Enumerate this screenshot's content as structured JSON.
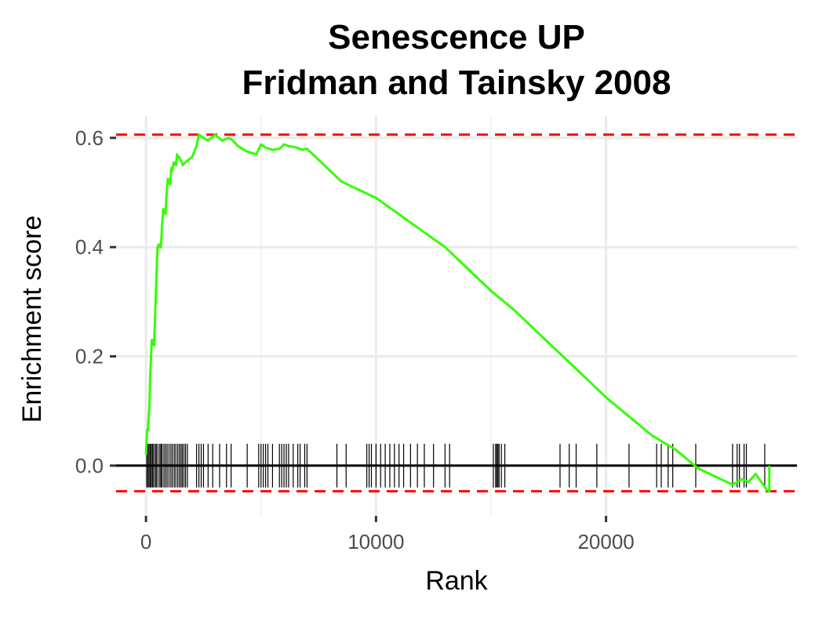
{
  "chart_data": {
    "type": "line",
    "title_line1": "Senescence UP",
    "title_line2": "Fridman and Tainsky 2008",
    "xlabel": "Rank",
    "ylabel": "Enrichment score",
    "xlim": [
      -1300,
      28300
    ],
    "ylim": [
      -0.092,
      0.64
    ],
    "xticks": [
      0,
      10000,
      20000
    ],
    "xtick_labels": [
      "0",
      "10000",
      "20000"
    ],
    "yticks": [
      0.0,
      0.2,
      0.4,
      0.6
    ],
    "ytick_labels": [
      "0.0",
      "0.2",
      "0.4",
      "0.6"
    ],
    "grid": true,
    "colors": {
      "curve": "#33ff00",
      "threshold": "#ff0000",
      "hits": "#000000",
      "zero_line": "#000000",
      "grid": "#ebebeb"
    },
    "max_es": 0.606,
    "min_es": -0.047,
    "series": [
      {
        "x": [
          0,
          50,
          80,
          150,
          180,
          250,
          320,
          350,
          400,
          450,
          500,
          550,
          600,
          650,
          700,
          750,
          800,
          850,
          900,
          950,
          1000,
          1050,
          1100,
          1150,
          1200,
          1300,
          1350,
          1400,
          1450,
          1500,
          1550,
          1600,
          1700,
          2000,
          2200,
          2300,
          2500,
          2700,
          3000,
          3300,
          3600,
          3700,
          4000,
          4400,
          4800,
          5000,
          5200,
          5500,
          5800,
          6000,
          6200,
          6500,
          6800,
          7000,
          8000,
          8500,
          9500,
          10000,
          11000,
          12000,
          13000,
          14000,
          15000,
          16000,
          17000,
          18000,
          19000,
          20000,
          21000,
          22000,
          23000,
          24000,
          24500,
          25000,
          25500,
          25700,
          25900,
          26200,
          26500,
          27000,
          27100,
          27100
        ],
        "y": [
          0.02,
          0.065,
          0.065,
          0.11,
          0.16,
          0.23,
          0.23,
          0.22,
          0.28,
          0.34,
          0.4,
          0.405,
          0.4,
          0.4,
          0.44,
          0.47,
          0.465,
          0.46,
          0.5,
          0.525,
          0.52,
          0.515,
          0.545,
          0.54,
          0.555,
          0.55,
          0.57,
          0.565,
          0.565,
          0.56,
          0.555,
          0.55,
          0.555,
          0.565,
          0.585,
          0.606,
          0.6,
          0.595,
          0.606,
          0.595,
          0.6,
          0.598,
          0.585,
          0.575,
          0.57,
          0.588,
          0.582,
          0.578,
          0.58,
          0.588,
          0.585,
          0.583,
          0.578,
          0.58,
          0.54,
          0.52,
          0.5,
          0.49,
          0.46,
          0.43,
          0.4,
          0.36,
          0.32,
          0.285,
          0.245,
          0.205,
          0.165,
          0.125,
          0.09,
          0.055,
          0.03,
          -0.005,
          -0.015,
          -0.025,
          -0.035,
          -0.03,
          -0.025,
          -0.03,
          -0.015,
          -0.045,
          -0.047,
          0.0
        ]
      }
    ],
    "hits": [
      30,
      80,
      130,
      180,
      230,
      280,
      330,
      400,
      450,
      520,
      600,
      650,
      700,
      780,
      850,
      920,
      1000,
      1080,
      1150,
      1230,
      1300,
      1380,
      1450,
      1520,
      1580,
      1650,
      1720,
      1800,
      2200,
      2300,
      2400,
      2500,
      2700,
      2900,
      3200,
      3500,
      3700,
      4400,
      4900,
      5000,
      5100,
      5200,
      5300,
      5500,
      5800,
      5900,
      6000,
      6100,
      6200,
      6400,
      6600,
      6700,
      6900,
      7000,
      8300,
      8700,
      9600,
      9700,
      9800,
      10000,
      10200,
      10400,
      10600,
      10800,
      11000,
      11200,
      11500,
      11800,
      12100,
      12500,
      13000,
      13200,
      15100,
      15200,
      15250,
      15300,
      15350,
      15450,
      15600,
      18000,
      18400,
      18700,
      19600,
      21000,
      22200,
      22400,
      22700,
      22900,
      23900,
      25500,
      25700,
      25800,
      26000,
      26100,
      26900
    ]
  }
}
